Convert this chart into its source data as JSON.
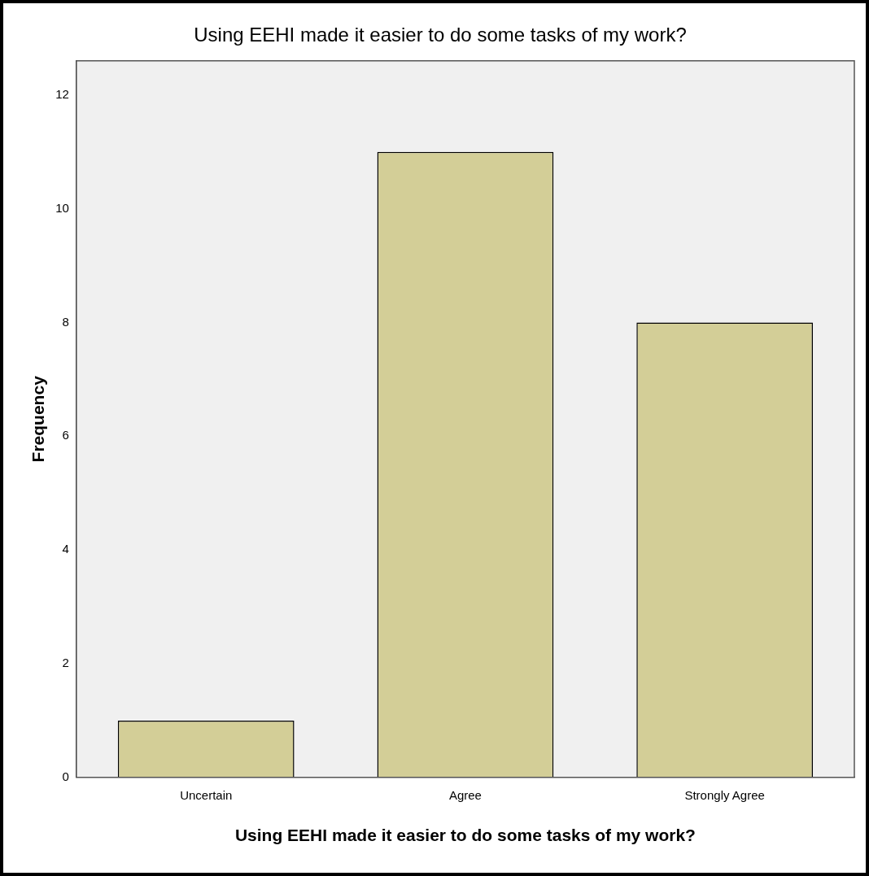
{
  "chart_data": {
    "type": "bar",
    "title": "Using EEHI made it easier to do some tasks of my work?",
    "xlabel": "Using EEHI made it easier to do some tasks of my work?",
    "ylabel": "Frequency",
    "categories": [
      "Uncertain",
      "Agree",
      "Strongly Agree"
    ],
    "values": [
      1,
      11,
      8
    ],
    "color": "#d3ce97",
    "ylim": [
      0,
      12.6
    ],
    "yticks": [
      0,
      2,
      4,
      6,
      8,
      10,
      12
    ],
    "grid": false,
    "legend": false
  }
}
